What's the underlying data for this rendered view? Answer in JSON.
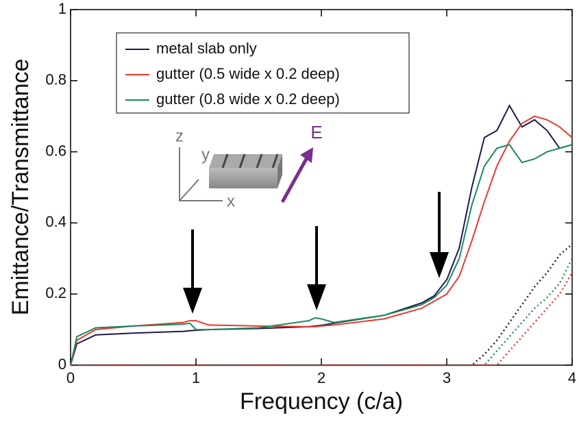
{
  "chart_data": {
    "type": "line",
    "xlabel": "Frequency (c/a)",
    "ylabel": "Emittance/Transmittance",
    "x": [
      0,
      0.05,
      0.2,
      0.5,
      0.9,
      0.95,
      1.0,
      1.1,
      1.5,
      1.9,
      1.95,
      2.0,
      2.1,
      2.5,
      2.8,
      2.9,
      3.0,
      3.1,
      3.2,
      3.3,
      3.4,
      3.5,
      3.6,
      3.7,
      3.8,
      3.9,
      4.0
    ],
    "series": [
      {
        "name": "metal slab only",
        "color": "#1c1a4a",
        "style": "solid",
        "values": [
          0,
          0.06,
          0.085,
          0.09,
          0.095,
          0.097,
          0.098,
          0.1,
          0.103,
          0.108,
          0.11,
          0.112,
          0.118,
          0.14,
          0.175,
          0.195,
          0.24,
          0.33,
          0.5,
          0.64,
          0.66,
          0.73,
          0.67,
          0.69,
          0.66,
          0.61,
          0.62
        ]
      },
      {
        "name": "gutter (0.5 wide x 0.2 deep)",
        "color": "#e8392f",
        "style": "solid",
        "values": [
          0,
          0.07,
          0.1,
          0.11,
          0.12,
          0.125,
          0.125,
          0.113,
          0.11,
          0.108,
          0.108,
          0.11,
          0.113,
          0.13,
          0.16,
          0.18,
          0.2,
          0.25,
          0.35,
          0.46,
          0.56,
          0.63,
          0.68,
          0.7,
          0.69,
          0.67,
          0.64
        ]
      },
      {
        "name": "gutter (0.8 wide x 0.2 deep)",
        "color": "#1a8a5a",
        "style": "solid",
        "values": [
          0,
          0.08,
          0.105,
          0.11,
          0.115,
          0.118,
          0.1,
          0.1,
          0.105,
          0.125,
          0.133,
          0.13,
          0.12,
          0.14,
          0.17,
          0.19,
          0.225,
          0.3,
          0.45,
          0.56,
          0.61,
          0.62,
          0.57,
          0.58,
          0.6,
          0.61,
          0.62
        ]
      },
      {
        "color": "#1c1a4a",
        "style": "dotted",
        "values": [
          0,
          0,
          0,
          0,
          0,
          0,
          0,
          0,
          0,
          0,
          0,
          0,
          0,
          0,
          0,
          0,
          0,
          0,
          0,
          0.03,
          0.07,
          0.12,
          0.17,
          0.22,
          0.26,
          0.31,
          0.34
        ]
      },
      {
        "color": "#1a8a5a",
        "style": "dotted",
        "values": [
          0,
          0,
          0,
          0,
          0,
          0,
          0,
          0,
          0,
          0,
          0,
          0,
          0,
          0,
          0,
          0,
          0,
          0,
          0,
          0,
          0.04,
          0.08,
          0.12,
          0.16,
          0.19,
          0.23,
          0.3
        ]
      },
      {
        "color": "#e8392f",
        "style": "dotted",
        "values": [
          0,
          0,
          0,
          0,
          0,
          0,
          0,
          0,
          0,
          0,
          0,
          0,
          0,
          0,
          0,
          0,
          0,
          0,
          0,
          0,
          0,
          0.04,
          0.08,
          0.12,
          0.16,
          0.2,
          0.26
        ]
      }
    ],
    "xlim": [
      0,
      4
    ],
    "xticks": [
      0,
      1,
      2,
      3,
      4
    ],
    "ylim": [
      0,
      1
    ],
    "yticks": [
      0,
      0.2,
      0.4,
      0.6,
      0.8,
      1
    ],
    "annotations": [
      "z",
      "y",
      "x",
      "E"
    ]
  }
}
